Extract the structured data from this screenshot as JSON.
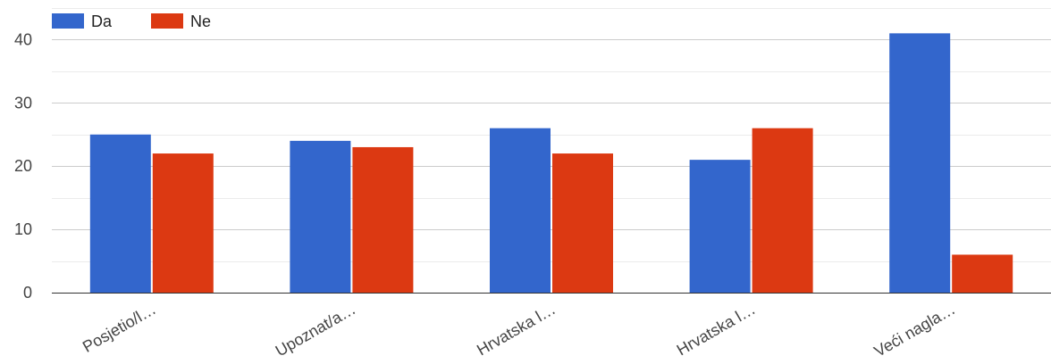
{
  "chart_data": {
    "type": "bar",
    "categories": [
      "Posjetio/l…",
      "Upoznat/a…",
      "Hrvatska l…",
      "Hrvatska l…",
      "Veći nagla…"
    ],
    "series": [
      {
        "name": "Da",
        "color": "#3366CC",
        "values": [
          25,
          24,
          26,
          21,
          41
        ]
      },
      {
        "name": "Ne",
        "color": "#DC3912",
        "values": [
          22,
          23,
          22,
          26,
          6
        ]
      }
    ],
    "yticks": [
      0,
      10,
      20,
      30,
      40
    ],
    "ylim": [
      0,
      45
    ],
    "grid": true,
    "legend_position": "top-left"
  }
}
